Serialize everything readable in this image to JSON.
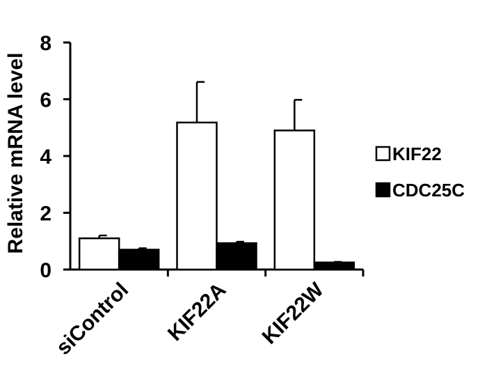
{
  "chart_data": {
    "type": "bar",
    "ylabel": "Relative mRNA level",
    "xlabel": "",
    "ylim": [
      0,
      8
    ],
    "yticks": [
      0,
      2,
      4,
      6,
      8
    ],
    "categories": [
      "siControl",
      "KIF22A",
      "KIF22W"
    ],
    "series": [
      {
        "name": "KIF22",
        "values": [
          1.1,
          5.18,
          4.9
        ],
        "errors": [
          0.1,
          1.43,
          1.08
        ],
        "fill": "#ffffff"
      },
      {
        "name": "CDC25C",
        "values": [
          0.7,
          0.93,
          0.25
        ],
        "errors": [
          0.05,
          0.05,
          0.02
        ],
        "fill": "#000000"
      }
    ],
    "grid": false,
    "legend": "right"
  }
}
